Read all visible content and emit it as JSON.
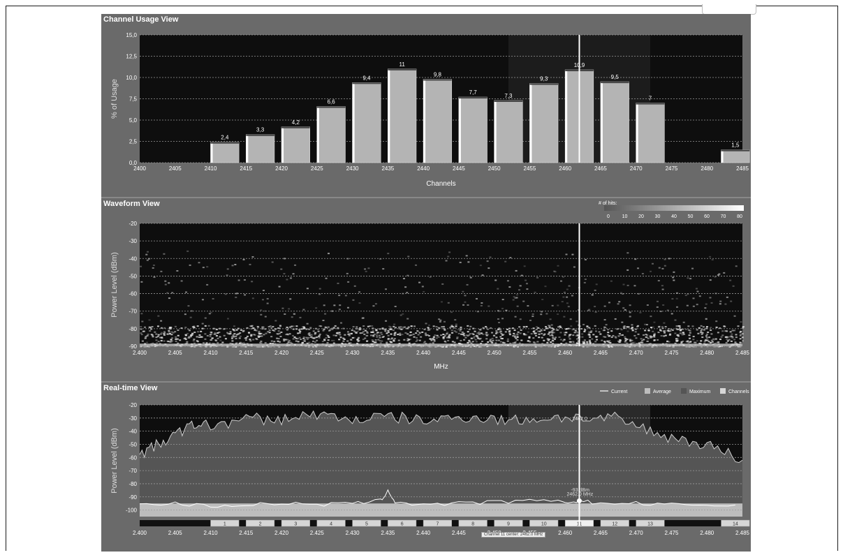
{
  "panels": {
    "usage_title": "Channel Usage View",
    "waveform_title": "Waveform View",
    "realtime_title": "Real-time View"
  },
  "waveform_legend": {
    "title": "# of hits:",
    "ticks": [
      "0",
      "10",
      "20",
      "30",
      "40",
      "50",
      "60",
      "70",
      "80"
    ]
  },
  "realtime_legend": {
    "items": [
      "Current",
      "Average",
      "Maximum",
      "Channels"
    ]
  },
  "annotations": {
    "peak_label": "2462.0",
    "current_dbm": "-93 dBm",
    "current_mhz": "2462.0 MHz",
    "tooltip": "Channel 11 center: 2462.0 MHz"
  },
  "colors": {
    "panel_bg": "#6a6a6a",
    "plot_bg": "#0e0e0e",
    "bar_fill": "#b4b4b4",
    "grid": "#9a9a9a",
    "cursor": "#ffffff"
  },
  "chart_data": [
    {
      "type": "bar",
      "title": "Channel Usage View",
      "xlabel": "Channels",
      "ylabel": "% of Usage",
      "xlim": [
        2400,
        2485
      ],
      "ylim": [
        0,
        15
      ],
      "x_ticks": [
        "2400",
        "2405",
        "2410",
        "2415",
        "2420",
        "2425",
        "2430",
        "2435",
        "2440",
        "2445",
        "2450",
        "2455",
        "2460",
        "2465",
        "2470",
        "2475",
        "2480",
        "2485"
      ],
      "y_ticks": [
        "0,0",
        "2,5",
        "5,0",
        "7,5",
        "10,0",
        "12,5",
        "15,0"
      ],
      "grid": true,
      "bars": [
        {
          "center": 2412,
          "value": 2.4,
          "label": "2,4"
        },
        {
          "center": 2417,
          "value": 3.3,
          "label": "3,3"
        },
        {
          "center": 2422,
          "value": 4.2,
          "label": "4,2"
        },
        {
          "center": 2427,
          "value": 6.6,
          "label": "6,6"
        },
        {
          "center": 2432,
          "value": 9.4,
          "label": "9,4"
        },
        {
          "center": 2437,
          "value": 11,
          "label": "11"
        },
        {
          "center": 2442,
          "value": 9.8,
          "label": "9,8"
        },
        {
          "center": 2447,
          "value": 7.7,
          "label": "7,7"
        },
        {
          "center": 2452,
          "value": 7.3,
          "label": "7,3"
        },
        {
          "center": 2457,
          "value": 9.3,
          "label": "9,3"
        },
        {
          "center": 2462,
          "value": 10.9,
          "label": "10,9"
        },
        {
          "center": 2467,
          "value": 9.5,
          "label": "9,5"
        },
        {
          "center": 2472,
          "value": 7,
          "label": "7"
        },
        {
          "center": 2484,
          "value": 1.5,
          "label": "1,5"
        }
      ],
      "cursor_mhz": 2462
    },
    {
      "type": "heatmap",
      "title": "Waveform View",
      "xlabel": "MHz",
      "ylabel": "Power Level (dBm)",
      "xlim": [
        2400,
        2485
      ],
      "ylim": [
        -90,
        -20
      ],
      "x_ticks": [
        "2.400",
        "2.405",
        "2.410",
        "2.415",
        "2.420",
        "2.425",
        "2.430",
        "2.435",
        "2.440",
        "2.445",
        "2.450",
        "2.455",
        "2.460",
        "2.465",
        "2.470",
        "2.475",
        "2.480",
        "2.485"
      ],
      "y_ticks": [
        "-20",
        "-30",
        "-40",
        "-50",
        "-60",
        "-70",
        "-80",
        "-90"
      ],
      "colorbar": [
        0,
        80
      ],
      "grid": true,
      "cursor_mhz": 2462
    },
    {
      "type": "line",
      "title": "Real-time View",
      "ylabel": "Power Level (dBm)",
      "xlim": [
        2400,
        2485
      ],
      "ylim": [
        -105,
        -20
      ],
      "x_ticks": [
        "2.400",
        "2.405",
        "2.410",
        "2.415",
        "2.420",
        "2.425",
        "2.430",
        "2.435",
        "2.440",
        "2.445",
        "2.450",
        "2.455",
        "2.460",
        "2.465",
        "2.470",
        "2.475",
        "2.480",
        "2.485"
      ],
      "y_ticks": [
        "-20",
        "-30",
        "-40",
        "-50",
        "-60",
        "-70",
        "-80",
        "-90",
        "-100"
      ],
      "grid": true,
      "legend": "top-right",
      "series": [
        {
          "name": "Maximum",
          "x": [
            2400,
            2402,
            2404,
            2406,
            2408,
            2410,
            2413,
            2416,
            2419,
            2422,
            2425,
            2428,
            2431,
            2434,
            2437,
            2440,
            2443,
            2446,
            2449,
            2452,
            2455,
            2458,
            2461,
            2464,
            2467,
            2470,
            2473,
            2476,
            2479,
            2482,
            2485
          ],
          "y": [
            -58,
            -52,
            -46,
            -40,
            -34,
            -36,
            -33,
            -30,
            -32,
            -29,
            -27,
            -30,
            -31,
            -29,
            -30,
            -32,
            -31,
            -29,
            -30,
            -32,
            -31,
            -30,
            -29,
            -31,
            -30,
            -36,
            -42,
            -46,
            -49,
            -54,
            -62
          ]
        },
        {
          "name": "Current",
          "x": [
            2400,
            2405,
            2410,
            2415,
            2420,
            2425,
            2430,
            2434,
            2435,
            2436,
            2440,
            2445,
            2450,
            2455,
            2460,
            2462,
            2465,
            2470,
            2475,
            2480,
            2485
          ],
          "y": [
            -96,
            -95,
            -97,
            -96,
            -95,
            -96,
            -95,
            -93,
            -85,
            -94,
            -96,
            -95,
            -94,
            -93,
            -94,
            -93,
            -95,
            -95,
            -96,
            -96,
            -97
          ]
        }
      ],
      "channels": [
        "1",
        "2",
        "3",
        "4",
        "5",
        "6",
        "7",
        "8",
        "9",
        "10",
        "11",
        "12",
        "13",
        "14"
      ],
      "cursor_mhz": 2462
    }
  ]
}
